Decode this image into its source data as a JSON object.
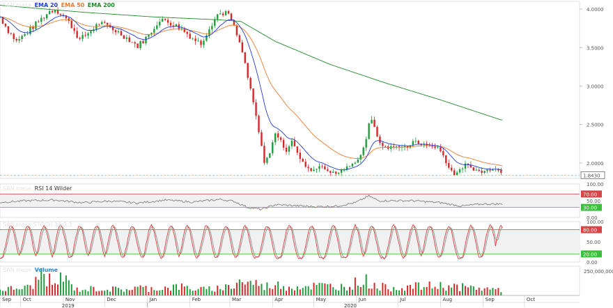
{
  "chart_data": {
    "type": "candlestick",
    "price_panel": {
      "watermark": "SAN.mese",
      "legend": [
        {
          "name": "EMA 20",
          "color": "#1f3bd6"
        },
        {
          "name": "EMA 50",
          "color": "#ee7a2e"
        },
        {
          "name": "EMA 200",
          "color": "#1f8a2a"
        }
      ],
      "ylim": [
        1.8,
        4.1
      ],
      "yticks": [
        "4.0000",
        "3.5000",
        "3.0000",
        "2.5000",
        "2.0000"
      ],
      "last_value_label": "1.8430",
      "last_value": 1.843,
      "anchors": [
        [
          0,
          3.9
        ],
        [
          6,
          3.72
        ],
        [
          12,
          3.58
        ],
        [
          20,
          3.7
        ],
        [
          28,
          3.84
        ],
        [
          36,
          3.97
        ],
        [
          40,
          4.0
        ],
        [
          46,
          3.92
        ],
        [
          52,
          3.78
        ],
        [
          58,
          3.6
        ],
        [
          66,
          3.72
        ],
        [
          72,
          3.82
        ],
        [
          80,
          3.76
        ],
        [
          86,
          3.7
        ],
        [
          94,
          3.6
        ],
        [
          100,
          3.52
        ],
        [
          108,
          3.66
        ],
        [
          114,
          3.82
        ],
        [
          120,
          3.86
        ],
        [
          126,
          3.8
        ],
        [
          132,
          3.74
        ],
        [
          140,
          3.62
        ],
        [
          146,
          3.55
        ],
        [
          152,
          3.76
        ],
        [
          158,
          3.93
        ],
        [
          164,
          3.96
        ],
        [
          168,
          3.86
        ],
        [
          172,
          3.66
        ],
        [
          177,
          3.38
        ],
        [
          181,
          3.02
        ],
        [
          185,
          2.7
        ],
        [
          189,
          2.3
        ],
        [
          192,
          2.02
        ],
        [
          196,
          2.12
        ],
        [
          200,
          2.4
        ],
        [
          204,
          2.28
        ],
        [
          208,
          2.16
        ],
        [
          212,
          2.3
        ],
        [
          216,
          2.12
        ],
        [
          220,
          2.0
        ],
        [
          226,
          1.9
        ],
        [
          232,
          1.96
        ],
        [
          238,
          1.9
        ],
        [
          244,
          1.86
        ],
        [
          250,
          1.92
        ],
        [
          256,
          1.98
        ],
        [
          262,
          2.1
        ],
        [
          266,
          2.32
        ],
        [
          269,
          2.58
        ],
        [
          272,
          2.48
        ],
        [
          276,
          2.24
        ],
        [
          282,
          2.2
        ],
        [
          290,
          2.22
        ],
        [
          296,
          2.2
        ],
        [
          302,
          2.3
        ],
        [
          306,
          2.24
        ],
        [
          312,
          2.22
        ],
        [
          318,
          2.2
        ],
        [
          322,
          2.1
        ],
        [
          326,
          1.94
        ],
        [
          330,
          1.86
        ],
        [
          334,
          1.9
        ],
        [
          338,
          1.98
        ],
        [
          344,
          1.92
        ],
        [
          350,
          1.88
        ],
        [
          356,
          1.92
        ],
        [
          360,
          1.94
        ],
        [
          364,
          1.87
        ]
      ],
      "ema200_anchors": [
        [
          0,
          4.05
        ],
        [
          60,
          3.96
        ],
        [
          110,
          3.9
        ],
        [
          160,
          3.86
        ],
        [
          175,
          3.84
        ],
        [
          200,
          3.58
        ],
        [
          240,
          3.28
        ],
        [
          280,
          3.04
        ],
        [
          320,
          2.82
        ],
        [
          364,
          2.56
        ]
      ]
    },
    "rsi_panel": {
      "title": "RSI 14 Wilder",
      "watermark": "SAN.mese",
      "ylim": [
        0,
        100
      ],
      "yticks": [
        "100.00",
        "70.00",
        "50.00",
        "30.00",
        "0.00"
      ],
      "upper_band": 70,
      "lower_band": 30,
      "upper_label": "70.00",
      "lower_label": "30.00",
      "color": "#808080",
      "anchors": [
        [
          0,
          45
        ],
        [
          20,
          50
        ],
        [
          40,
          52
        ],
        [
          60,
          44
        ],
        [
          80,
          49
        ],
        [
          100,
          43
        ],
        [
          120,
          52
        ],
        [
          140,
          46
        ],
        [
          160,
          54
        ],
        [
          170,
          48
        ],
        [
          180,
          30
        ],
        [
          190,
          24
        ],
        [
          200,
          38
        ],
        [
          215,
          35
        ],
        [
          230,
          32
        ],
        [
          245,
          34
        ],
        [
          258,
          44
        ],
        [
          268,
          64
        ],
        [
          275,
          50
        ],
        [
          300,
          50
        ],
        [
          320,
          44
        ],
        [
          335,
          34
        ],
        [
          350,
          40
        ],
        [
          364,
          40
        ]
      ]
    },
    "stoch_panel": {
      "watermark": "SAN.mese STOCH 14,3,3",
      "ylim": [
        0,
        100
      ],
      "yticks": [
        "100.00",
        "80.00",
        "50.00",
        "20.00",
        "0.00"
      ],
      "upper_band": 80,
      "lower_band": 20,
      "upper_label": "80.00",
      "lower_label": "20.00",
      "k_color": "#e03c3c",
      "d_color": "#909090",
      "peaks": [
        8,
        20,
        32,
        44,
        58,
        70,
        82,
        96,
        110,
        124,
        136,
        150,
        164,
        178,
        194,
        210,
        226,
        242,
        258,
        270,
        286,
        300,
        312,
        326,
        342,
        356,
        364
      ]
    },
    "volume_panel": {
      "title": "Volume",
      "watermark": "SAN.mese",
      "yticks": [
        "250,000,000"
      ],
      "ymax": 300000000,
      "bars": [
        [
          0,
          60
        ],
        [
          10,
          70
        ],
        [
          20,
          80
        ],
        [
          25,
          120
        ],
        [
          30,
          230
        ],
        [
          34,
          180
        ],
        [
          40,
          90
        ],
        [
          44,
          200
        ],
        [
          48,
          150
        ],
        [
          56,
          60
        ],
        [
          70,
          70
        ],
        [
          90,
          60
        ],
        [
          100,
          80
        ],
        [
          110,
          70
        ],
        [
          130,
          90
        ],
        [
          140,
          70
        ],
        [
          150,
          60
        ],
        [
          160,
          80
        ],
        [
          170,
          100
        ],
        [
          175,
          160
        ],
        [
          180,
          120
        ],
        [
          185,
          140
        ],
        [
          190,
          90
        ],
        [
          200,
          110
        ],
        [
          210,
          90
        ],
        [
          230,
          100
        ],
        [
          250,
          90
        ],
        [
          265,
          160
        ],
        [
          270,
          110
        ],
        [
          280,
          80
        ],
        [
          300,
          90
        ],
        [
          320,
          100
        ],
        [
          340,
          80
        ],
        [
          364,
          60
        ]
      ]
    },
    "x_axis": {
      "months": [
        "Sep",
        "Oct",
        "Nov",
        "Dec",
        "Jan",
        "Feb",
        "Mar",
        "Apr",
        "May",
        "Jun",
        "Jul",
        "Aug",
        "Sep",
        "Oct"
      ],
      "years": [
        "2019",
        "2020"
      ]
    }
  }
}
